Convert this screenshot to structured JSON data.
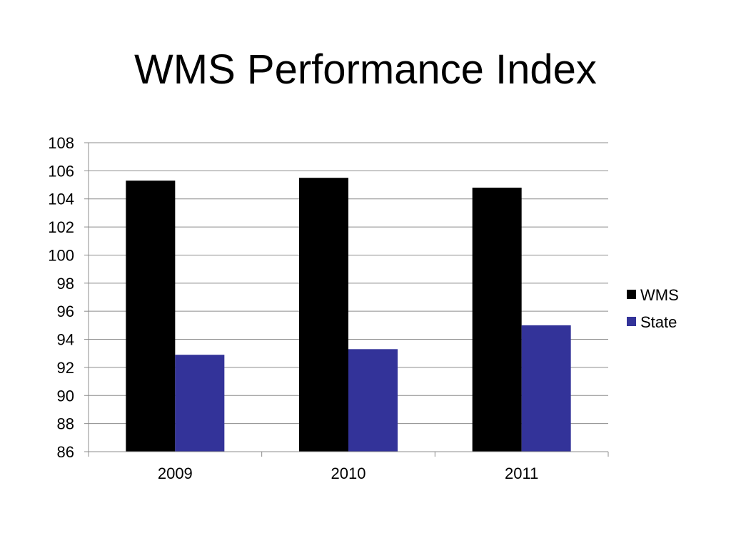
{
  "title": "WMS Performance Index",
  "chart_data": {
    "type": "bar",
    "title": "WMS Performance Index",
    "xlabel": "",
    "ylabel": "",
    "categories": [
      "2009",
      "2010",
      "2011"
    ],
    "series": [
      {
        "name": "WMS",
        "color": "#000000",
        "values": [
          105.3,
          105.5,
          104.8
        ]
      },
      {
        "name": "State",
        "color": "#333399",
        "values": [
          92.9,
          93.3,
          95.0
        ]
      }
    ],
    "ylim": [
      86,
      108
    ],
    "yticks": [
      "86",
      "88",
      "90",
      "92",
      "94",
      "96",
      "98",
      "100",
      "102",
      "104",
      "106",
      "108"
    ],
    "grid": true,
    "legend_position": "right"
  }
}
